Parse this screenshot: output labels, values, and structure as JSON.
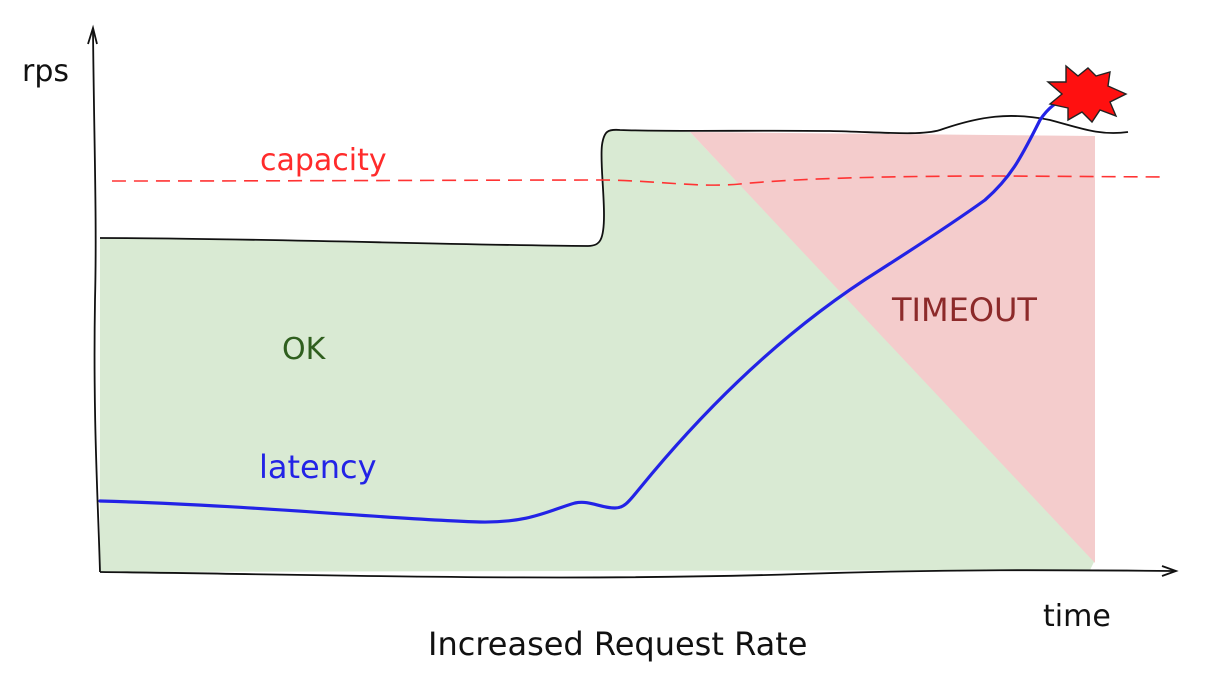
{
  "diagram": {
    "title": "Increased Request Rate",
    "y_axis_label": "rps",
    "x_axis_label": "time",
    "capacity_label": "capacity",
    "ok_label": "OK",
    "timeout_label": "TIMEOUT",
    "latency_label": "latency"
  },
  "colors": {
    "ok_region": "#d9ead3",
    "timeout_region": "#f4cccc",
    "capacity_line": "#ff3333",
    "latency_line": "#2323e6",
    "ok_text": "#2f5f1e",
    "timeout_text": "#8c2a2a",
    "axis": "#111111",
    "explosion": "#ff1010"
  },
  "icons": {
    "crash": "explosion-icon"
  }
}
